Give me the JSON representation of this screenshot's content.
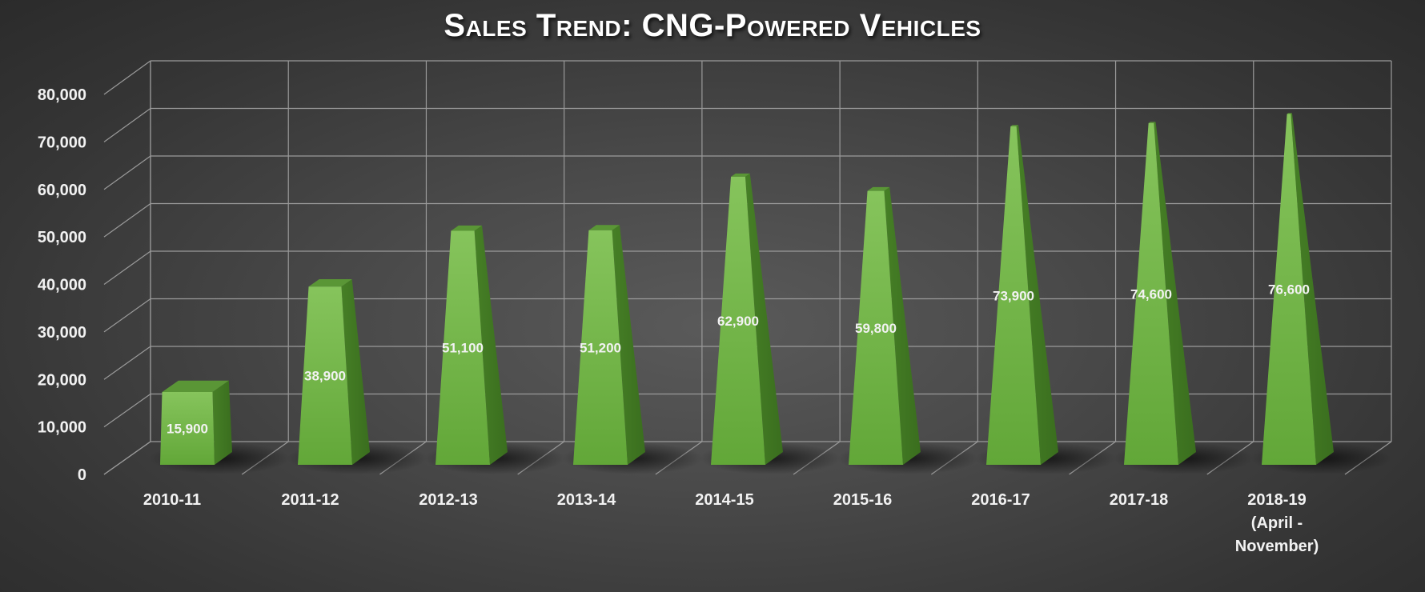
{
  "chart_data": {
    "type": "bar",
    "title": "Sales Trend: CNG-Powered Vehicles",
    "categories": [
      [
        "2010-11"
      ],
      [
        "2011-12"
      ],
      [
        "2012-13"
      ],
      [
        "2013-14"
      ],
      [
        "2014-15"
      ],
      [
        "2015-16"
      ],
      [
        "2016-17"
      ],
      [
        "2017-18"
      ],
      [
        "2018-19",
        "(April -",
        "November)"
      ]
    ],
    "values": [
      15900,
      38900,
      51100,
      51200,
      62900,
      59800,
      73900,
      74600,
      76600
    ],
    "data_labels": [
      "15,900",
      "38,900",
      "51,100",
      "51,200",
      "62,900",
      "59,800",
      "73,900",
      "74,600",
      "76,600"
    ],
    "ylim": [
      0,
      80000
    ],
    "yticks": [
      "0",
      "10,000",
      "20,000",
      "30,000",
      "40,000",
      "50,000",
      "60,000",
      "70,000",
      "80,000"
    ],
    "xlabel": "",
    "ylabel": "",
    "grid": true,
    "legend": false,
    "style": "3d-pyramid",
    "colors": {
      "bar_front": "#70b244",
      "bar_side": "#3f7a20",
      "bar_top": "#5a9636",
      "grid": "#9a9a9a",
      "text": "#f2f2f2"
    }
  }
}
